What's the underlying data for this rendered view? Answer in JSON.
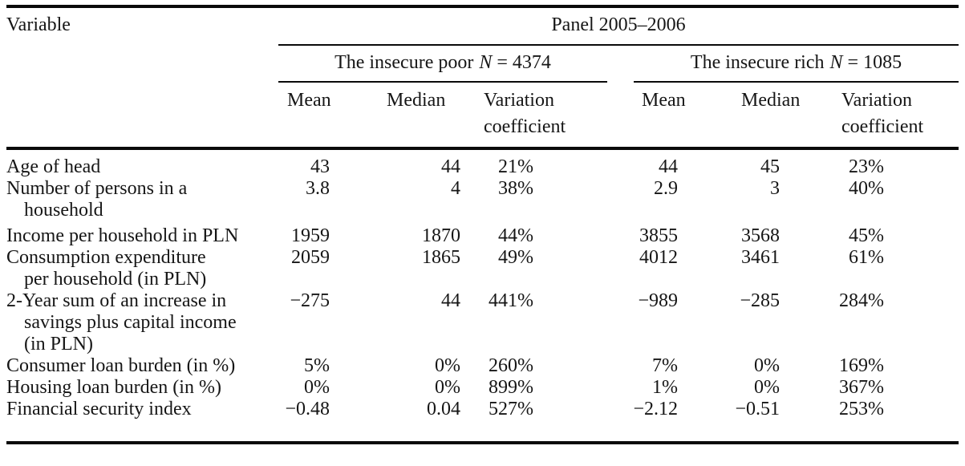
{
  "table": {
    "title_row": {
      "variable_label": "Variable",
      "panel_label": "Panel 2005–2006"
    },
    "groups": [
      {
        "name": "The insecure poor",
        "n_symbol": "N",
        "n_value": "= 4374"
      },
      {
        "name": "The insecure rich",
        "n_symbol": "N",
        "n_value": "= 1085"
      }
    ],
    "sub_headers": {
      "mean": "Mean",
      "median": "Median",
      "variation": "Variation coefficient"
    },
    "rows": [
      {
        "label_lines": [
          "Age of head"
        ],
        "values": [
          "43",
          "44",
          "21%",
          "44",
          "45",
          "23%"
        ]
      },
      {
        "label_lines": [
          "Number of persons in a",
          "household"
        ],
        "values": [
          "3.8",
          "4",
          "38%",
          "2.9",
          "3",
          "40%"
        ]
      },
      {
        "label_lines": [
          "Income per household in PLN"
        ],
        "values": [
          "1959",
          "1870",
          "44%",
          "3855",
          "3568",
          "45%"
        ]
      },
      {
        "label_lines": [
          "Consumption expenditure",
          "per household (in PLN)"
        ],
        "values": [
          "2059",
          "1865",
          "49%",
          "4012",
          "3461",
          "61%"
        ]
      },
      {
        "label_lines": [
          "2-Year sum of an increase in",
          "savings plus capital income",
          "(in PLN)"
        ],
        "values": [
          "−275",
          "44",
          "441%",
          "−989",
          "−285",
          "284%"
        ]
      },
      {
        "label_lines": [
          "Consumer loan burden (in %)"
        ],
        "values": [
          "5%",
          "0%",
          "260%",
          "7%",
          "0%",
          "169%"
        ]
      },
      {
        "label_lines": [
          "Housing loan burden (in %)"
        ],
        "values": [
          "0%",
          "0%",
          "899%",
          "1%",
          "0%",
          "367%"
        ]
      },
      {
        "label_lines": [
          "Financial security index"
        ],
        "values": [
          "−0.48",
          "0.04",
          "527%",
          "−2.12",
          "−0.51",
          "253%"
        ]
      }
    ],
    "colors": {
      "background": "#ffffff",
      "text": "#161616",
      "rule": "#0a0a0a"
    }
  }
}
